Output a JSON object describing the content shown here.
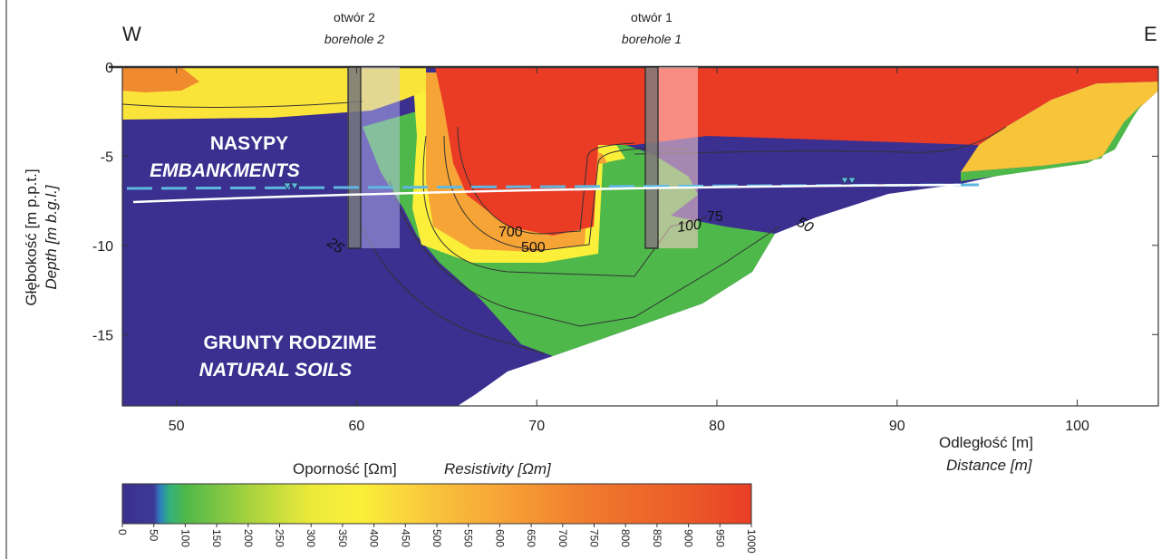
{
  "chart_data": {
    "type": "heatmap",
    "directions": {
      "west": "W",
      "east": "E"
    },
    "xlabel": {
      "pl": "Odległość [m]",
      "en": "Distance [m]"
    },
    "ylabel": {
      "pl": "Głębokość [m p.p.t.]",
      "en": "Depth [m b.g.l.]"
    },
    "xlim": [
      47,
      104.5
    ],
    "ylim": [
      -19,
      0
    ],
    "x_ticks": [
      50,
      60,
      70,
      80,
      90,
      100
    ],
    "y_ticks": [
      0,
      -5,
      -10,
      -15
    ],
    "colorbar": {
      "title_pl": "Oporność [Ωm]",
      "title_en": "Resistivity [Ωm]",
      "ticks": [
        0,
        50,
        100,
        150,
        200,
        250,
        300,
        350,
        400,
        450,
        500,
        550,
        600,
        650,
        700,
        750,
        800,
        850,
        900,
        950,
        1000
      ],
      "range": [
        0,
        1000
      ]
    },
    "colors": {
      "very_low": "#3b2f8f",
      "low": "#4fb84a",
      "mid": "#fbef3a",
      "high": "#f7a436",
      "very_high": "#ea3b25"
    },
    "zones": [
      {
        "pl": "NASYPY",
        "en": "EMBANKMENTS"
      },
      {
        "pl": "GRUNTY RODZIME",
        "en": "NATURAL SOILS"
      }
    ],
    "boreholes": [
      {
        "name_pl": "otwór 2",
        "name_en": "borehole 2",
        "x": 60,
        "depth": -10
      },
      {
        "name_pl": "otwór 1",
        "name_en": "borehole 1",
        "x": 76.5,
        "depth": -10
      }
    ],
    "contour_labels": [
      "700",
      "500",
      "100",
      "75",
      "50",
      "25"
    ]
  }
}
